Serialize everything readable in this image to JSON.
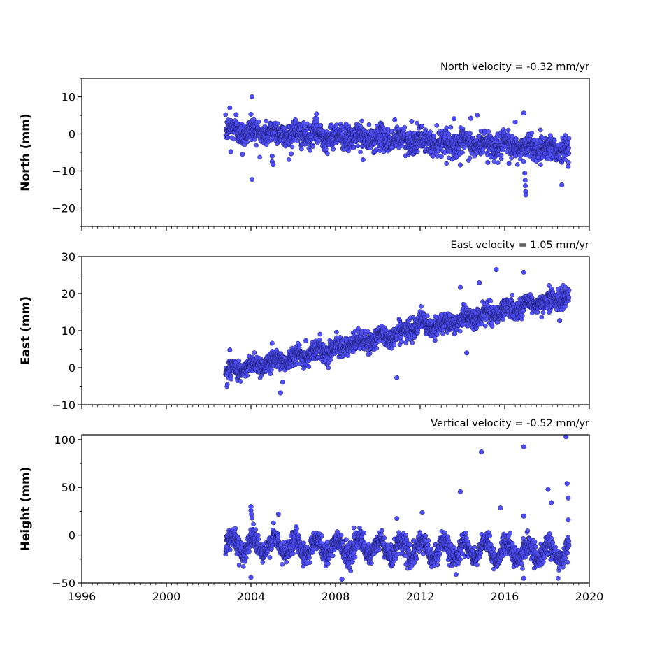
{
  "chart_data": {
    "type": "scatter",
    "marker_color": "#4d4dff",
    "marker_edge_color": "#1a1a55",
    "xlim": [
      1996,
      2020
    ],
    "xticks": [
      "1996",
      "2000",
      "2004",
      "2008",
      "2012",
      "2016",
      "2020"
    ],
    "xtick_values": [
      1996,
      2000,
      2004,
      2008,
      2012,
      2016,
      2020
    ],
    "x_minor_step": 0.25,
    "grid": false,
    "data_span": [
      2002.8,
      2019.05
    ],
    "panels": [
      {
        "id": "north",
        "title": "North velocity = -0.32 mm/yr",
        "ylabel": "North (mm)",
        "ylim": [
          -25,
          15
        ],
        "yticks": [
          "10",
          "0",
          "−10",
          "−20"
        ],
        "ytick_values": [
          10,
          0,
          -10,
          -20
        ],
        "velocity_mm_per_yr": -0.32,
        "trend": [
          [
            2002.8,
            1.0
          ],
          [
            2019.05,
            -4.2
          ]
        ],
        "scatter_mm": 1.6,
        "seasonal_amp_mm": 0.8,
        "show_xtick_labels": false,
        "points": [
          {
            "x": 2003.0,
            "y": 7.0
          },
          {
            "x": 2003.05,
            "y": -4.8
          },
          {
            "x": 2003.3,
            "y": 5.2
          },
          {
            "x": 2003.6,
            "y": -5.5
          },
          {
            "x": 2004.05,
            "y": 10.0
          },
          {
            "x": 2004.05,
            "y": -12.3
          },
          {
            "x": 2004.0,
            "y": 5.3
          },
          {
            "x": 2005.0,
            "y": -6.0
          },
          {
            "x": 2005.0,
            "y": -7.5
          },
          {
            "x": 2005.05,
            "y": -8.3
          },
          {
            "x": 2005.9,
            "y": -5.4
          },
          {
            "x": 2006.1,
            "y": 3.8
          },
          {
            "x": 2007.1,
            "y": 5.4
          },
          {
            "x": 2008.5,
            "y": 2.6
          },
          {
            "x": 2009.3,
            "y": -7.0
          },
          {
            "x": 2010.8,
            "y": 3.8
          },
          {
            "x": 2011.6,
            "y": 3.4
          },
          {
            "x": 2012.5,
            "y": -4.8
          },
          {
            "x": 2013.0,
            "y": -6.1
          },
          {
            "x": 2013.6,
            "y": 4.1
          },
          {
            "x": 2013.9,
            "y": -8.4
          },
          {
            "x": 2014.4,
            "y": 4.2
          },
          {
            "x": 2014.7,
            "y": 5.0
          },
          {
            "x": 2015.2,
            "y": -7.7
          },
          {
            "x": 2016.2,
            "y": -8.0
          },
          {
            "x": 2016.5,
            "y": 3.2
          },
          {
            "x": 2016.9,
            "y": 5.6
          },
          {
            "x": 2016.95,
            "y": -10.6
          },
          {
            "x": 2016.97,
            "y": -12.5
          },
          {
            "x": 2016.98,
            "y": -14.0
          },
          {
            "x": 2016.99,
            "y": -15.6
          },
          {
            "x": 2017.0,
            "y": -16.5
          },
          {
            "x": 2017.2,
            "y": -6.0
          },
          {
            "x": 2017.6,
            "y": -6.4
          },
          {
            "x": 2018.7,
            "y": -13.8
          },
          {
            "x": 2019.0,
            "y": -8.8
          }
        ]
      },
      {
        "id": "east",
        "title": "East velocity = 1.05 mm/yr",
        "ylabel": "East (mm)",
        "ylim": [
          -10,
          30
        ],
        "yticks": [
          "30",
          "20",
          "10",
          "0",
          "−10"
        ],
        "ytick_values": [
          30,
          20,
          10,
          0,
          -10
        ],
        "velocity_mm_per_yr": 1.05,
        "trend": [
          [
            2002.8,
            -1.2
          ],
          [
            2019.05,
            19.3
          ]
        ],
        "offsets": [
          [
            2011.45,
            2.2
          ]
        ],
        "scatter_mm": 1.3,
        "seasonal_amp_mm": 0.9,
        "show_xtick_labels": false,
        "points": [
          {
            "x": 2003.0,
            "y": 4.8
          },
          {
            "x": 2005.4,
            "y": -6.8
          },
          {
            "x": 2005.5,
            "y": -3.9
          },
          {
            "x": 2005.0,
            "y": 6.6
          },
          {
            "x": 2006.6,
            "y": 7.3
          },
          {
            "x": 2010.9,
            "y": -2.7
          },
          {
            "x": 2012.7,
            "y": 7.4
          },
          {
            "x": 2013.4,
            "y": 14.2
          },
          {
            "x": 2013.9,
            "y": 21.7
          },
          {
            "x": 2014.2,
            "y": 4.0
          },
          {
            "x": 2014.8,
            "y": 22.9
          },
          {
            "x": 2015.6,
            "y": 26.5
          },
          {
            "x": 2016.4,
            "y": 14.0
          },
          {
            "x": 2016.9,
            "y": 25.8
          },
          {
            "x": 2018.6,
            "y": 12.7
          },
          {
            "x": 2018.1,
            "y": 15.0
          }
        ]
      },
      {
        "id": "height",
        "title": "Vertical velocity = -0.52 mm/yr",
        "ylabel": "Height (mm)",
        "ylim": [
          -50,
          105
        ],
        "yticks": [
          "100",
          "50",
          "0",
          "−50"
        ],
        "ytick_values": [
          100,
          50,
          0,
          -50
        ],
        "velocity_mm_per_yr": -0.52,
        "trend": [
          [
            2002.8,
            -10.0
          ],
          [
            2019.05,
            -18.5
          ]
        ],
        "scatter_mm": 5.5,
        "seasonal_amp_mm": 9.0,
        "show_xtick_labels": true,
        "points": [
          {
            "x": 2004.0,
            "y": 30.0
          },
          {
            "x": 2004.0,
            "y": 26.0
          },
          {
            "x": 2004.02,
            "y": 22.0
          },
          {
            "x": 2004.05,
            "y": 18.0
          },
          {
            "x": 2004.0,
            "y": -44.0
          },
          {
            "x": 2005.3,
            "y": 22.0
          },
          {
            "x": 2010.9,
            "y": 17.5
          },
          {
            "x": 2012.1,
            "y": 23.5
          },
          {
            "x": 2013.9,
            "y": 45.5
          },
          {
            "x": 2014.9,
            "y": 87.0
          },
          {
            "x": 2015.8,
            "y": 28.5
          },
          {
            "x": 2016.9,
            "y": 92.5
          },
          {
            "x": 2016.9,
            "y": 20.0
          },
          {
            "x": 2016.9,
            "y": -45.0
          },
          {
            "x": 2018.05,
            "y": 48.0
          },
          {
            "x": 2018.2,
            "y": 34.0
          },
          {
            "x": 2018.9,
            "y": 103.0
          },
          {
            "x": 2018.95,
            "y": 54.0
          },
          {
            "x": 2019.0,
            "y": 39.0
          },
          {
            "x": 2019.0,
            "y": 16.0
          },
          {
            "x": 2008.3,
            "y": -46.0
          },
          {
            "x": 2013.7,
            "y": -41.0
          }
        ]
      }
    ]
  }
}
